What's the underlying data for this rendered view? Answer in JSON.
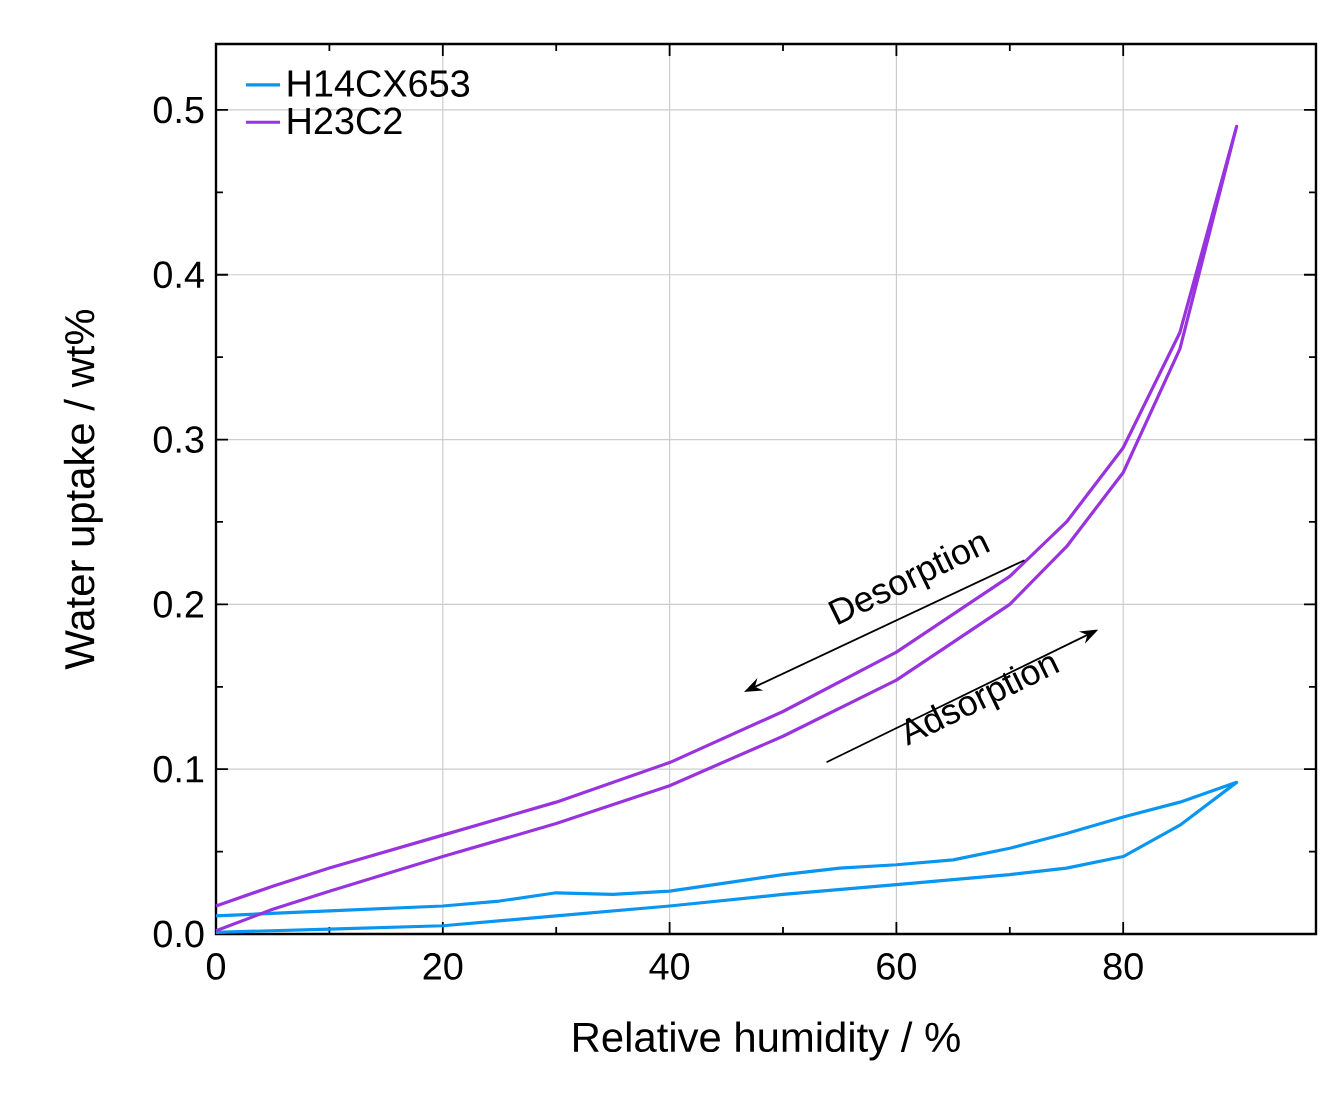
{
  "chart_data": {
    "type": "line",
    "xlabel": "Relative humidity / %",
    "ylabel": "Water uptake / wt%",
    "xlim": [
      0,
      97
    ],
    "ylim": [
      0,
      0.54
    ],
    "xticks": [
      0,
      20,
      40,
      60,
      80
    ],
    "yticks": [
      {
        "value": 0,
        "label": "0.0"
      },
      {
        "value": 0.1,
        "label": "0.1"
      },
      {
        "value": 0.2,
        "label": "0.2"
      },
      {
        "value": 0.3,
        "label": "0.3"
      },
      {
        "value": 0.4,
        "label": "0.4"
      },
      {
        "value": 0.5,
        "label": "0.5"
      }
    ],
    "grid": true,
    "legend": "top left",
    "marker": "none",
    "line_style": "solid",
    "series": [
      {
        "name": "H14CX653",
        "color": "#0a96f0",
        "x": [
          0,
          10,
          20,
          30,
          40,
          50,
          60,
          70,
          75,
          80,
          85,
          90,
          85,
          80,
          75,
          70,
          65,
          60,
          55,
          50,
          45,
          40,
          35,
          30,
          25,
          20,
          10,
          0
        ],
        "values": [
          0.001,
          0.003,
          0.005,
          0.011,
          0.017,
          0.024,
          0.03,
          0.036,
          0.04,
          0.047,
          0.066,
          0.092,
          0.08,
          0.071,
          0.061,
          0.052,
          0.045,
          0.042,
          0.04,
          0.036,
          0.031,
          0.026,
          0.024,
          0.025,
          0.02,
          0.017,
          0.014,
          0.011
        ]
      },
      {
        "name": "H23C2",
        "color": "#9933dd",
        "x": [
          0,
          5,
          10,
          20,
          30,
          40,
          50,
          60,
          70,
          75,
          80,
          85,
          90,
          85,
          80,
          75,
          70,
          60,
          50,
          40,
          30,
          20,
          10,
          5,
          0
        ],
        "values": [
          0.002,
          0.015,
          0.026,
          0.047,
          0.067,
          0.09,
          0.12,
          0.154,
          0.2,
          0.235,
          0.28,
          0.355,
          0.49,
          0.365,
          0.295,
          0.25,
          0.217,
          0.171,
          0.135,
          0.104,
          0.08,
          0.06,
          0.04,
          0.029,
          0.017
        ]
      }
    ],
    "annotations": [
      "Desorption",
      "Adsorption"
    ]
  }
}
